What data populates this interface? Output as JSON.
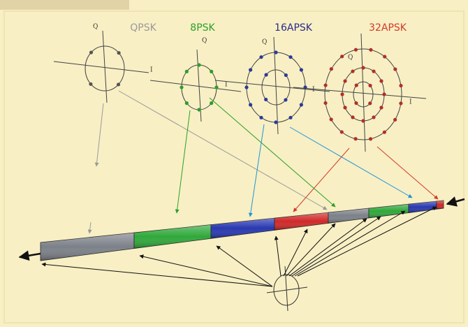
{
  "constellations": [
    {
      "name": "QPSK",
      "q_label": "Q",
      "i_label": "I"
    },
    {
      "name": "8PSK",
      "q_label": "Q",
      "i_label": "I"
    },
    {
      "name": "16APSK",
      "q_label": "Q",
      "i_label": "I"
    },
    {
      "name": "32APSK",
      "q_label": "Q",
      "i_label": "I"
    }
  ]
}
